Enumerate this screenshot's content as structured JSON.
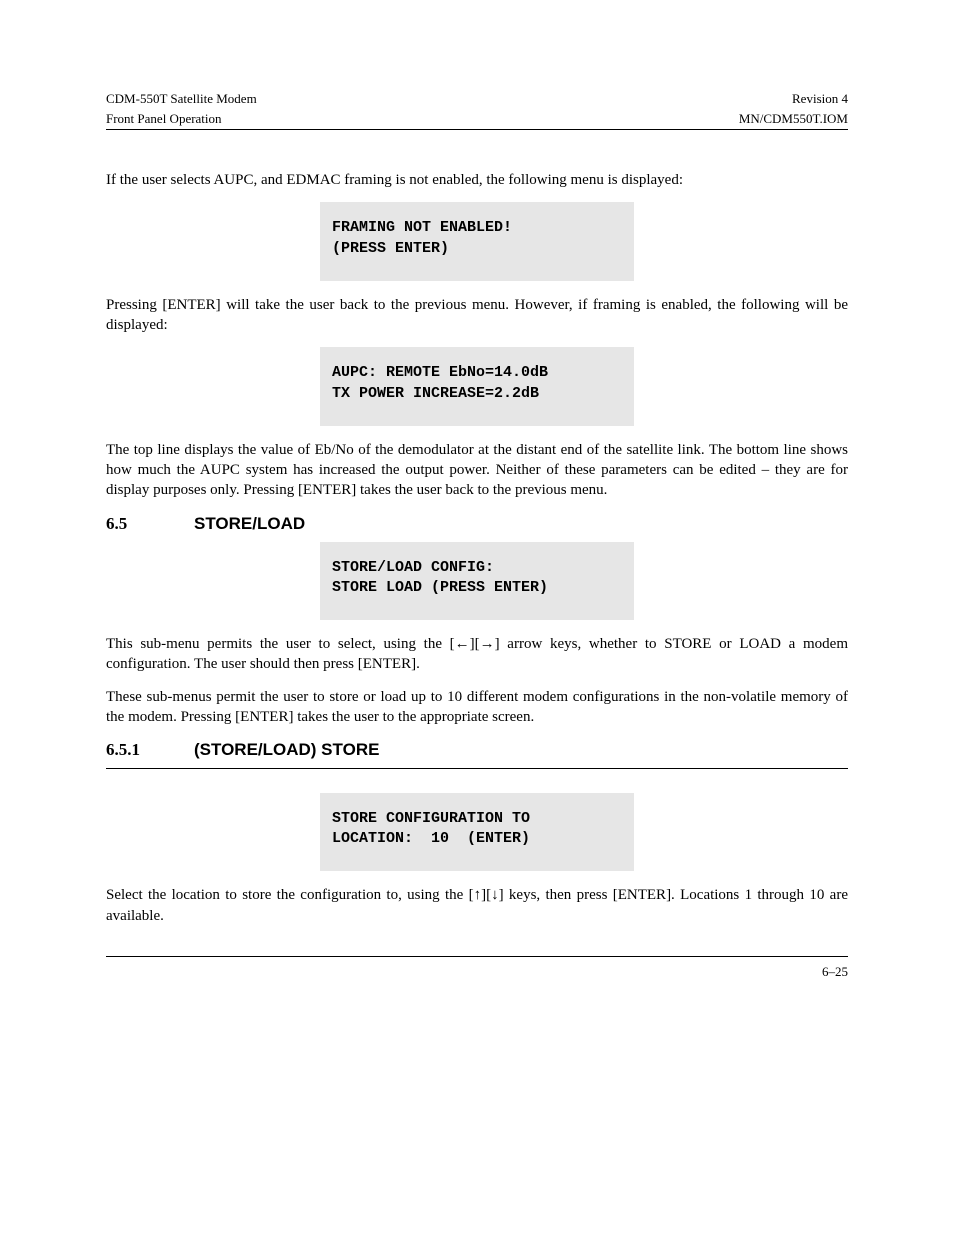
{
  "header": {
    "left_line1": "CDM-550T Satellite Modem",
    "left_line2": "Front Panel Operation",
    "right_line1": "Revision 4",
    "right_line2": "MN/CDM550T.IOM"
  },
  "body": {
    "p1": "If the user selects AUPC, and EDMAC framing is not enabled, the following menu is displayed:",
    "lcd1_line1": "FRAMING NOT ENABLED!",
    "lcd1_line2": "(PRESS ENTER)",
    "p2_a": "Pressing ",
    "p2_enter": "[ENTER]",
    "p2_b": " will take the user back to the previous menu. However, if framing is enabled, the following will be displayed:",
    "lcd2_line1": "AUPC: REMOTE EbNo=14.0dB",
    "lcd2_line2": "TX POWER INCREASE=2.2dB",
    "p3": "The top line displays the value of Eb/No of the demodulator at the distant end of the satellite link. The bottom line shows how much the AUPC system has increased the output power. Neither of these parameters can be edited – they are for display purposes only. Pressing [ENTER] takes the user back to the previous menu.",
    "heading_num": "6.5",
    "heading_title": "STORE/LOAD",
    "lcd3_line1": "STORE/LOAD CONFIG:",
    "lcd3_line2": "STORE LOAD (PRESS ENTER)",
    "p4": "This sub-menu permits the user to select, using the [←][→] arrow keys, whether to STORE or LOAD a modem configuration. The user should then press [ENTER].",
    "p5": "These sub-menus permit the user to store or load up to 10 different modem configurations in the non-volatile memory of the modem. Pressing [ENTER] takes the user to the appropriate screen."
  },
  "section2": {
    "heading_num": "6.5.1",
    "heading_title": "(STORE/LOAD) STORE",
    "lcd_line1": "STORE CONFIGURATION TO",
    "lcd_line2": "LOCATION:  10  (ENTER)",
    "p_a": "Select the location to store the configuration to, using the [",
    "arrow_up": "↑",
    "arrow_sep": "][",
    "arrow_down": "↓",
    "p_b": "] keys, then press [ENTER]. Locations 1 through 10 are available."
  },
  "footer": {
    "page_num": "6–25"
  },
  "colors": {
    "lcd_bg": "#e6e6e6",
    "text": "#000000",
    "rule": "#000000"
  },
  "fonts": {
    "body": "Times New Roman",
    "mono": "Courier New",
    "heading": "Arial"
  }
}
